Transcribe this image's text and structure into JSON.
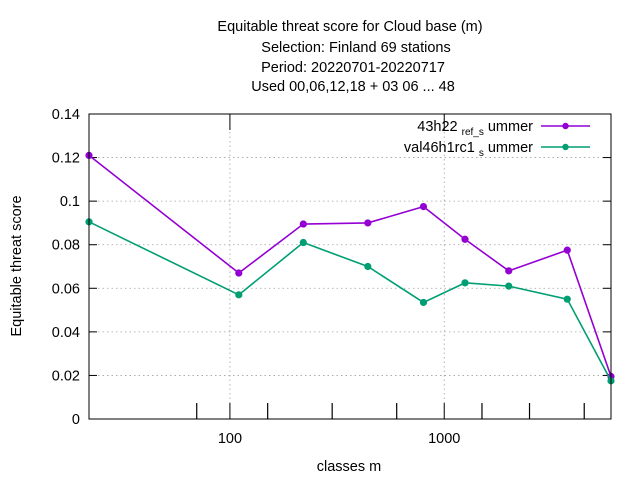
{
  "chart_data": {
    "type": "line",
    "title": [
      "Equitable threat score  for Cloud base (m)",
      "Selection: Finland     69 stations",
      "Period: 20220701-20220717",
      "Used  00,06,12,18  + 03 06 ... 48"
    ],
    "xlabel": "classes m",
    "ylabel": "Equitable threat score",
    "x_scale": "log",
    "xlim": [
      22,
      6000
    ],
    "ylim": [
      0,
      0.14
    ],
    "x_ticks": [
      100,
      1000
    ],
    "x_tick_labels": [
      "100",
      "1000"
    ],
    "y_ticks": [
      0,
      0.02,
      0.04,
      0.06,
      0.08,
      0.1,
      0.12,
      0.14
    ],
    "y_tick_labels": [
      "0",
      "0.02",
      "0.04",
      "0.06",
      "0.08",
      "0.1",
      "0.12",
      "0.14"
    ],
    "x_minor_ticks": [
      70,
      150,
      300,
      600,
      1500,
      2500,
      4500
    ],
    "grid": true,
    "legend_position": "top-right",
    "x": [
      22,
      110,
      220,
      440,
      800,
      1250,
      2000,
      3750,
      6000
    ],
    "series": [
      {
        "name": "43h22_ref_summer",
        "legend_main": "43h22",
        "legend_sub": "ref",
        "legend_mid": "_s",
        "legend_tail": "ummer",
        "color": "#9400d3",
        "values": [
          0.121,
          0.067,
          0.0895,
          0.09,
          0.0975,
          0.0825,
          0.068,
          0.0775,
          0.0195
        ]
      },
      {
        "name": "val46h1rc1_summer",
        "legend_main": "val46h1rc1",
        "legend_sub": "s",
        "legend_mid": "",
        "legend_tail": "ummer",
        "color": "#009e73",
        "values": [
          0.0905,
          0.057,
          0.081,
          0.07,
          0.0535,
          0.0625,
          0.061,
          0.055,
          0.0175
        ]
      }
    ]
  }
}
